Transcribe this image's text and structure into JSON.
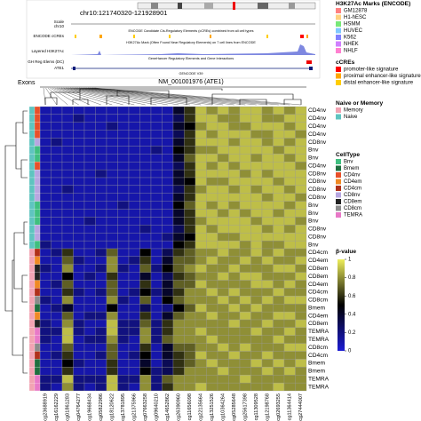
{
  "browser": {
    "position": "chr10:121740320-121928901",
    "scale": "Scale",
    "chrom": "chr10",
    "ccres": "ENCODE cCREs",
    "ccres_desc": "ENCODE Candidate Cis-Regulatory Elements (cCREs) combined from all cell types",
    "h3k27ac": "Layered H3K27Ac",
    "h3k27ac_desc": "H3K27Ac Mark (Often Found Near Regulatory Elements) on 7 cell lines from ENCODE",
    "genehancer_desc": "GeneHancer Regulatory Elements and Gene Interactions",
    "gh": "GH Reg Elems (DC)",
    "gene": "ATE1",
    "gencode": "GENCODE V39",
    "exons": "Exons",
    "transcript": "NM_001001976 (ATE1)"
  },
  "chart_data": {
    "type": "heatmap",
    "columns": [
      "cg23688919",
      "cg16162229",
      "cg01861283",
      "cg04764277",
      "cg19668434",
      "cg05822986",
      "cg18120622",
      "cg13781895",
      "cg21375966",
      "cg07663258",
      "cg09640210",
      "cg14652862",
      "cg26390960",
      "cg11656098",
      "cg22135664",
      "cg13251526",
      "cg10364264",
      "cg05285648",
      "cg25617398",
      "cg11309528",
      "cg12198768",
      "cg02693255",
      "cg11364414",
      "cg27444007"
    ],
    "rows": [
      "CD4nv",
      "CD4nv",
      "CD4nv",
      "CD4nv",
      "CD8nv",
      "Bnv",
      "Bnv",
      "CD4nv",
      "CD8nv",
      "CD8nv",
      "CD8nv",
      "CD8nv",
      "Bnv",
      "Bnv",
      "Bnv",
      "CD8nv",
      "CD8nv",
      "Bnv",
      "CD4cm",
      "CD4em",
      "CD8em",
      "CD8em",
      "CD4em",
      "CD4cm",
      "CD8cm",
      "Bmem",
      "CD4em",
      "CD8em",
      "TEMRA",
      "TEMRA",
      "CD8cm",
      "CD4cm",
      "Bmem",
      "Bmem",
      "TEMRA",
      "TEMRA"
    ],
    "row_naive_memory": [
      1,
      1,
      1,
      1,
      1,
      1,
      1,
      1,
      1,
      1,
      1,
      1,
      1,
      1,
      1,
      1,
      1,
      1,
      0,
      0,
      0,
      0,
      0,
      0,
      0,
      0,
      0,
      0,
      0,
      0,
      0,
      0,
      0,
      0,
      0,
      0
    ],
    "values": [
      [
        0.1,
        0.1,
        0.1,
        0.1,
        0.1,
        0.1,
        0.1,
        0.1,
        0.1,
        0.1,
        0.1,
        0.1,
        0.4,
        0.6,
        0.9,
        0.8,
        0.9,
        0.8,
        0.9,
        0.9,
        0.8,
        0.9,
        0.8,
        0.9
      ],
      [
        0.1,
        0.1,
        0.1,
        0.2,
        0.1,
        0.1,
        0.1,
        0.1,
        0.1,
        0.1,
        0.1,
        0.1,
        0.3,
        0.6,
        0.9,
        0.9,
        0.8,
        0.8,
        0.9,
        0.9,
        0.8,
        0.8,
        0.9,
        0.9
      ],
      [
        0.1,
        0.1,
        0.1,
        0.1,
        0.1,
        0.1,
        0.2,
        0.1,
        0.1,
        0.1,
        0.1,
        0.1,
        0.4,
        0.5,
        0.8,
        0.9,
        0.9,
        0.8,
        0.8,
        0.9,
        0.9,
        0.9,
        0.8,
        0.9
      ],
      [
        0.1,
        0.1,
        0.1,
        0.1,
        0.1,
        0.1,
        0.1,
        0.1,
        0.1,
        0.1,
        0.1,
        0.1,
        0.3,
        0.6,
        0.9,
        0.8,
        0.9,
        0.9,
        0.9,
        0.8,
        0.8,
        0.9,
        0.9,
        0.8
      ],
      [
        0.1,
        0.2,
        0.1,
        0.1,
        0.1,
        0.1,
        0.1,
        0.1,
        0.1,
        0.1,
        0.1,
        0.1,
        0.4,
        0.6,
        0.9,
        0.9,
        0.9,
        0.8,
        0.9,
        0.9,
        0.8,
        0.9,
        0.8,
        0.9
      ],
      [
        0.1,
        0.1,
        0.1,
        0.1,
        0.1,
        0.1,
        0.1,
        0.1,
        0.1,
        0.1,
        0.2,
        0.1,
        0.5,
        0.6,
        0.8,
        0.8,
        0.9,
        0.9,
        0.9,
        0.9,
        0.9,
        0.8,
        0.9,
        0.9
      ],
      [
        0.1,
        0.1,
        0.1,
        0.1,
        0.1,
        0.1,
        0.1,
        0.1,
        0.1,
        0.1,
        0.1,
        0.1,
        0.4,
        0.7,
        0.9,
        0.9,
        0.8,
        0.9,
        0.9,
        0.8,
        0.9,
        0.9,
        0.8,
        0.9
      ],
      [
        0.1,
        0.1,
        0.1,
        0.1,
        0.1,
        0.1,
        0.1,
        0.1,
        0.1,
        0.1,
        0.1,
        0.1,
        0.3,
        0.6,
        0.9,
        0.8,
        0.9,
        0.8,
        0.9,
        0.9,
        0.9,
        0.9,
        0.9,
        0.8
      ],
      [
        0.1,
        0.1,
        0.1,
        0.1,
        0.1,
        0.2,
        0.1,
        0.1,
        0.1,
        0.1,
        0.1,
        0.1,
        0.4,
        0.6,
        0.9,
        0.9,
        0.9,
        0.9,
        0.8,
        0.9,
        0.8,
        0.9,
        0.9,
        0.9
      ],
      [
        0.1,
        0.1,
        0.1,
        0.1,
        0.1,
        0.1,
        0.1,
        0.1,
        0.1,
        0.1,
        0.1,
        0.1,
        0.4,
        0.5,
        0.9,
        0.8,
        0.8,
        0.9,
        0.9,
        0.9,
        0.9,
        0.8,
        0.9,
        0.9
      ],
      [
        0.1,
        0.1,
        0.2,
        0.1,
        0.1,
        0.1,
        0.1,
        0.1,
        0.1,
        0.1,
        0.1,
        0.1,
        0.3,
        0.6,
        0.8,
        0.9,
        0.9,
        0.8,
        0.9,
        0.8,
        0.9,
        0.9,
        0.8,
        0.9
      ],
      [
        0.1,
        0.1,
        0.1,
        0.1,
        0.1,
        0.1,
        0.1,
        0.1,
        0.1,
        0.1,
        0.1,
        0.1,
        0.4,
        0.6,
        0.9,
        0.9,
        0.9,
        0.9,
        0.9,
        0.9,
        0.8,
        0.9,
        0.9,
        0.8
      ],
      [
        0.1,
        0.1,
        0.1,
        0.1,
        0.1,
        0.1,
        0.1,
        0.2,
        0.1,
        0.1,
        0.1,
        0.1,
        0.5,
        0.7,
        0.9,
        0.8,
        0.9,
        0.8,
        0.9,
        0.9,
        0.9,
        0.9,
        0.8,
        0.9
      ],
      [
        0.1,
        0.1,
        0.1,
        0.1,
        0.1,
        0.1,
        0.1,
        0.1,
        0.1,
        0.1,
        0.1,
        0.1,
        0.4,
        0.6,
        0.9,
        0.9,
        0.8,
        0.9,
        0.8,
        0.9,
        0.9,
        0.8,
        0.9,
        0.9
      ],
      [
        0.1,
        0.1,
        0.1,
        0.1,
        0.2,
        0.1,
        0.1,
        0.1,
        0.1,
        0.1,
        0.1,
        0.1,
        0.4,
        0.6,
        0.8,
        0.9,
        0.9,
        0.9,
        0.9,
        0.8,
        0.9,
        0.9,
        0.9,
        0.8
      ],
      [
        0.1,
        0.1,
        0.1,
        0.1,
        0.1,
        0.1,
        0.1,
        0.1,
        0.1,
        0.2,
        0.1,
        0.1,
        0.3,
        0.6,
        0.9,
        0.8,
        0.9,
        0.9,
        0.9,
        0.9,
        0.8,
        0.9,
        0.8,
        0.9
      ],
      [
        0.1,
        0.1,
        0.1,
        0.1,
        0.1,
        0.1,
        0.1,
        0.1,
        0.1,
        0.1,
        0.1,
        0.2,
        0.4,
        0.5,
        0.9,
        0.9,
        0.8,
        0.8,
        0.9,
        0.9,
        0.9,
        0.9,
        0.9,
        0.9
      ],
      [
        0.2,
        0.1,
        0.1,
        0.1,
        0.1,
        0.1,
        0.1,
        0.1,
        0.1,
        0.1,
        0.1,
        0.1,
        0.5,
        0.6,
        0.9,
        0.9,
        0.9,
        0.9,
        0.8,
        0.9,
        0.8,
        0.8,
        0.9,
        0.9
      ],
      [
        0.1,
        0.2,
        0.6,
        0.1,
        0.1,
        0.2,
        0.7,
        0.1,
        0.1,
        0.5,
        0.1,
        0.3,
        0.6,
        0.7,
        0.8,
        0.8,
        0.9,
        0.8,
        0.8,
        0.9,
        0.8,
        0.9,
        0.8,
        0.8
      ],
      [
        0.1,
        0.1,
        0.7,
        0.2,
        0.1,
        0.1,
        0.8,
        0.1,
        0.2,
        0.6,
        0.1,
        0.4,
        0.7,
        0.7,
        0.8,
        0.9,
        0.8,
        0.8,
        0.9,
        0.8,
        0.9,
        0.8,
        0.8,
        0.9
      ],
      [
        0.2,
        0.1,
        0.8,
        0.1,
        0.1,
        0.2,
        0.8,
        0.2,
        0.1,
        0.7,
        0.2,
        0.5,
        0.7,
        0.8,
        0.9,
        0.8,
        0.8,
        0.9,
        0.8,
        0.8,
        0.8,
        0.9,
        0.9,
        0.8
      ],
      [
        0.1,
        0.1,
        0.5,
        0.1,
        0.2,
        0.1,
        0.6,
        0.1,
        0.1,
        0.4,
        0.1,
        0.3,
        0.6,
        0.7,
        0.8,
        0.8,
        0.9,
        0.8,
        0.9,
        0.9,
        0.8,
        0.8,
        0.8,
        0.9
      ],
      [
        0.1,
        0.2,
        0.7,
        0.1,
        0.1,
        0.1,
        0.7,
        0.1,
        0.1,
        0.6,
        0.1,
        0.4,
        0.7,
        0.7,
        0.9,
        0.8,
        0.8,
        0.8,
        0.8,
        0.9,
        0.9,
        0.8,
        0.9,
        0.8
      ],
      [
        0.1,
        0.1,
        0.6,
        0.2,
        0.1,
        0.2,
        0.7,
        0.1,
        0.2,
        0.5,
        0.2,
        0.4,
        0.6,
        0.8,
        0.8,
        0.9,
        0.8,
        0.9,
        0.8,
        0.8,
        0.8,
        0.9,
        0.8,
        0.8
      ],
      [
        0.2,
        0.1,
        0.8,
        0.1,
        0.1,
        0.1,
        0.8,
        0.2,
        0.1,
        0.7,
        0.1,
        0.5,
        0.7,
        0.8,
        0.8,
        0.8,
        0.9,
        0.8,
        0.9,
        0.8,
        0.9,
        0.8,
        0.9,
        0.9
      ],
      [
        0.1,
        0.2,
        0.4,
        0.1,
        0.1,
        0.1,
        0.5,
        0.1,
        0.1,
        0.3,
        0.1,
        0.2,
        0.5,
        0.7,
        0.9,
        0.8,
        0.8,
        0.9,
        0.8,
        0.9,
        0.8,
        0.8,
        0.8,
        0.8
      ],
      [
        0.1,
        0.1,
        0.7,
        0.1,
        0.2,
        0.2,
        0.8,
        0.1,
        0.1,
        0.6,
        0.1,
        0.4,
        0.7,
        0.8,
        0.8,
        0.9,
        0.8,
        0.8,
        0.9,
        0.8,
        0.8,
        0.9,
        0.9,
        0.8
      ],
      [
        0.2,
        0.1,
        0.8,
        0.2,
        0.1,
        0.1,
        0.9,
        0.2,
        0.2,
        0.7,
        0.2,
        0.6,
        0.8,
        0.8,
        0.8,
        0.8,
        0.8,
        0.9,
        0.8,
        0.8,
        0.9,
        0.8,
        0.8,
        0.9
      ],
      [
        0.2,
        0.2,
        0.9,
        0.2,
        0.1,
        0.2,
        0.9,
        0.2,
        0.2,
        0.8,
        0.2,
        0.6,
        0.8,
        0.8,
        0.9,
        0.8,
        0.8,
        0.8,
        0.8,
        0.9,
        0.8,
        0.8,
        0.9,
        0.8
      ],
      [
        0.2,
        0.1,
        0.9,
        0.1,
        0.2,
        0.2,
        0.8,
        0.2,
        0.1,
        0.8,
        0.2,
        0.7,
        0.8,
        0.8,
        0.8,
        0.9,
        0.8,
        0.8,
        0.8,
        0.8,
        0.8,
        0.9,
        0.8,
        0.8
      ],
      [
        0.1,
        0.1,
        0.7,
        0.1,
        0.1,
        0.1,
        0.7,
        0.1,
        0.1,
        0.6,
        0.1,
        0.4,
        0.7,
        0.7,
        0.8,
        0.8,
        0.9,
        0.8,
        0.9,
        0.8,
        0.8,
        0.8,
        0.9,
        0.9
      ],
      [
        0.1,
        0.2,
        0.6,
        0.1,
        0.1,
        0.2,
        0.7,
        0.1,
        0.2,
        0.5,
        0.1,
        0.4,
        0.6,
        0.7,
        0.9,
        0.8,
        0.8,
        0.9,
        0.8,
        0.8,
        0.9,
        0.8,
        0.8,
        0.8
      ],
      [
        0.1,
        0.1,
        0.5,
        0.2,
        0.1,
        0.1,
        0.6,
        0.1,
        0.1,
        0.4,
        0.1,
        0.3,
        0.6,
        0.7,
        0.8,
        0.9,
        0.8,
        0.8,
        0.8,
        0.9,
        0.8,
        0.9,
        0.8,
        0.9
      ],
      [
        0.1,
        0.1,
        0.6,
        0.1,
        0.1,
        0.1,
        0.6,
        0.1,
        0.1,
        0.5,
        0.2,
        0.3,
        0.6,
        0.8,
        0.8,
        0.8,
        0.9,
        0.8,
        0.8,
        0.8,
        0.9,
        0.8,
        0.9,
        0.8
      ],
      [
        0.2,
        0.2,
        0.9,
        0.2,
        0.2,
        0.2,
        0.9,
        0.2,
        0.2,
        0.8,
        0.2,
        0.7,
        0.8,
        0.8,
        0.8,
        0.8,
        0.8,
        0.8,
        0.9,
        0.8,
        0.8,
        0.8,
        0.8,
        0.8
      ],
      [
        0.2,
        0.1,
        0.8,
        0.2,
        0.1,
        0.2,
        0.9,
        0.2,
        0.1,
        0.8,
        0.2,
        0.6,
        0.8,
        0.8,
        0.9,
        0.8,
        0.8,
        0.8,
        0.8,
        0.8,
        0.8,
        0.9,
        0.8,
        0.8
      ]
    ],
    "colorbar": {
      "title": "β-value",
      "lim": [
        0,
        1
      ],
      "ticks": [
        0,
        0.2,
        0.4,
        0.6,
        0.8,
        1
      ],
      "colors": [
        "#1c1cd4",
        "#000000",
        "#eeee5a"
      ]
    },
    "legends": [
      {
        "title": "H3K27Ac Marks (ENCODE)",
        "items": [
          {
            "name": "GM12878",
            "color": "#ff8080"
          },
          {
            "name": "H1-hESC",
            "color": "#ffd280"
          },
          {
            "name": "HSMM",
            "color": "#78e878"
          },
          {
            "name": "HUVEC",
            "color": "#80c8ff"
          },
          {
            "name": "K562",
            "color": "#8080ff"
          },
          {
            "name": "NHEK",
            "color": "#d080ff"
          },
          {
            "name": "NHLF",
            "color": "#ff80d0"
          }
        ]
      },
      {
        "title": "cCREs",
        "items": [
          {
            "name": "promoter-like signature",
            "color": "#ff0000"
          },
          {
            "name": "proximal enhancer-like signature",
            "color": "#ffa700"
          },
          {
            "name": "distal enhancer-like signature",
            "color": "#ffcd00"
          }
        ]
      },
      {
        "title": "Naive or Memory",
        "items": [
          {
            "name": "Memory",
            "color": "#f2a3b3"
          },
          {
            "name": "Naive",
            "color": "#5fc4c0"
          }
        ]
      },
      {
        "title": "CellType",
        "items": [
          {
            "name": "Bnv",
            "color": "#3fbf7f"
          },
          {
            "name": "Bmem",
            "color": "#1f6f3f"
          },
          {
            "name": "CD4nv",
            "color": "#e8502a"
          },
          {
            "name": "CD4em",
            "color": "#f08a24"
          },
          {
            "name": "CD4cm",
            "color": "#b0301a"
          },
          {
            "name": "CD8nv",
            "color": "#b7a6e0"
          },
          {
            "name": "CD8em",
            "color": "#222222"
          },
          {
            "name": "CD8cm",
            "color": "#8c8c8c"
          },
          {
            "name": "TEMRA",
            "color": "#e879c7"
          }
        ]
      }
    ]
  }
}
